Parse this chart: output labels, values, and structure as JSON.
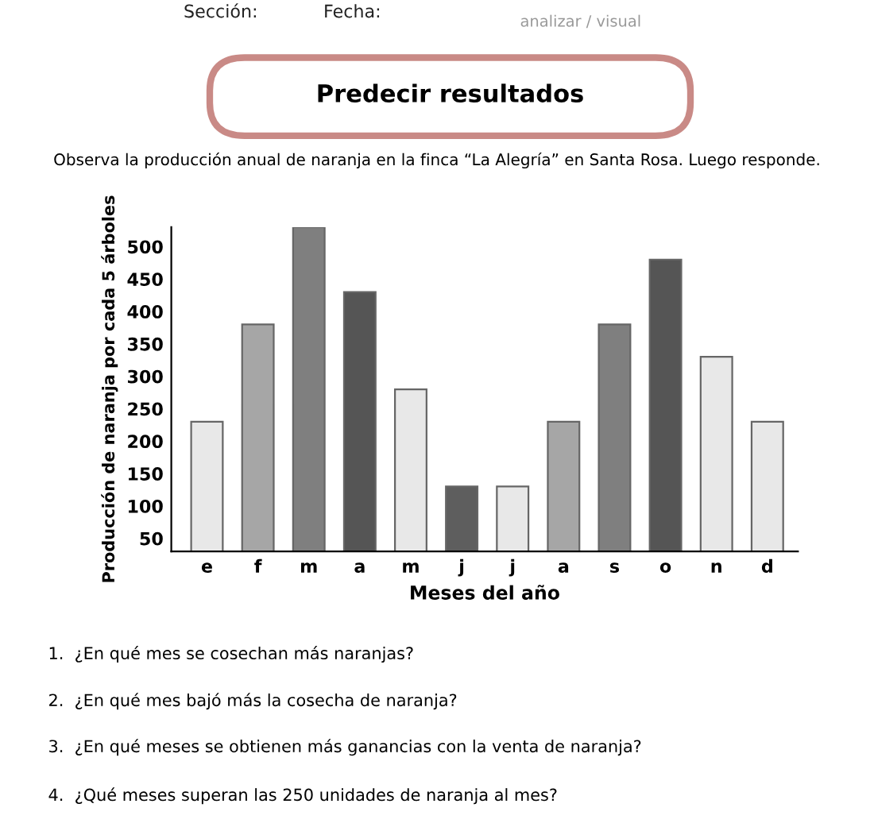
{
  "chart_data": {
    "type": "bar",
    "title": "Predecir resultados",
    "subtitle": "Observa la producción anual de naranja en la finca “La Alegría” en Santa Rosa. Luego responde.",
    "xlabel": "Meses del año",
    "ylabel": "Producción de naranja por cada 5 árboles",
    "categories": [
      "e",
      "f",
      "m",
      "a",
      "m",
      "j",
      "j",
      "a",
      "s",
      "o",
      "n",
      "d"
    ],
    "values": [
      230,
      380,
      530,
      430,
      280,
      130,
      130,
      230,
      380,
      480,
      330,
      230
    ],
    "colors": [
      "#e8e8e8",
      "#a6a6a6",
      "#7f7f7f",
      "#555555",
      "#e8e8e8",
      "#5e5e5e",
      "#e8e8e8",
      "#a6a6a6",
      "#7f7f7f",
      "#555555",
      "#e8e8e8",
      "#e8e8e8"
    ],
    "ylim": [
      30,
      530
    ],
    "yticks": [
      50,
      100,
      150,
      200,
      250,
      300,
      350,
      400,
      450,
      500
    ],
    "grid": false,
    "legend": false,
    "annotations": [
      "Sección:",
      "Fecha:",
      "analizar / visual",
      "1.  ¿En qué mes se cosechan más naranjas?",
      "2.  ¿En qué mes bajó más la cosecha de naranja?",
      "3.  ¿En qué meses se obtienen más ganancias con la venta de naranja?",
      "4.  ¿Qué meses superan las 250 unidades de naranja al mes?"
    ]
  }
}
